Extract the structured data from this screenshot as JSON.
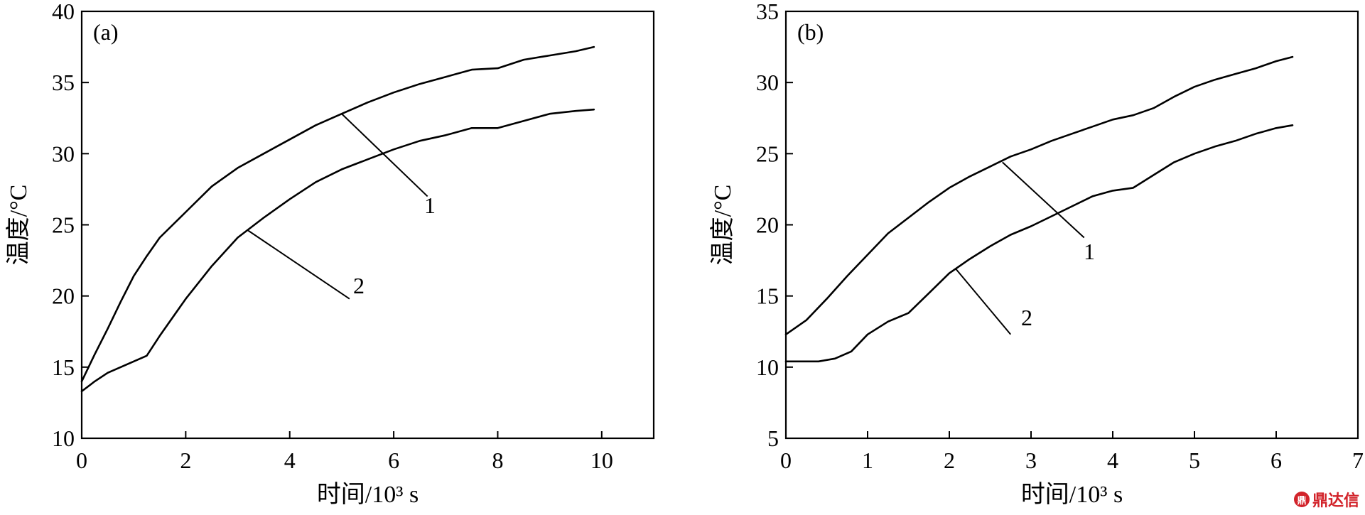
{
  "chart_data": [
    {
      "type": "line",
      "panel_label": "(a)",
      "xlabel": "时间/10³ s",
      "ylabel": "温度/°C",
      "xlim": [
        0,
        11
      ],
      "ylim": [
        10,
        40
      ],
      "xticks": [
        0,
        2,
        4,
        6,
        8,
        10
      ],
      "yticks": [
        10,
        15,
        20,
        25,
        30,
        35,
        40
      ],
      "grid": false,
      "series": [
        {
          "name": "1",
          "x": [
            0,
            0.25,
            0.5,
            0.75,
            1.0,
            1.25,
            1.5,
            2.0,
            2.5,
            3.0,
            3.5,
            4.0,
            4.5,
            5.0,
            5.5,
            6.0,
            6.5,
            7.0,
            7.5,
            8.0,
            8.5,
            9.0,
            9.5,
            9.85
          ],
          "y": [
            14.0,
            15.9,
            17.7,
            19.6,
            21.4,
            22.8,
            24.1,
            25.9,
            27.7,
            29.0,
            30.0,
            31.0,
            32.0,
            32.8,
            33.6,
            34.3,
            34.9,
            35.4,
            35.9,
            36.0,
            36.6,
            36.9,
            37.2,
            37.5
          ]
        },
        {
          "name": "2",
          "x": [
            0,
            0.25,
            0.5,
            0.75,
            1.0,
            1.25,
            1.5,
            2.0,
            2.5,
            3.0,
            3.5,
            4.0,
            4.5,
            5.0,
            5.5,
            6.0,
            6.5,
            7.0,
            7.5,
            8.0,
            8.5,
            9.0,
            9.5,
            9.85
          ],
          "y": [
            13.3,
            14.0,
            14.6,
            15.0,
            15.4,
            15.8,
            17.2,
            19.8,
            22.1,
            24.1,
            25.5,
            26.8,
            28.0,
            28.9,
            29.6,
            30.3,
            30.9,
            31.3,
            31.8,
            31.8,
            32.3,
            32.8,
            33.0,
            33.1
          ]
        }
      ]
    },
    {
      "type": "line",
      "panel_label": "(b)",
      "xlabel": "时间/10³ s",
      "ylabel": "温度/°C",
      "xlim": [
        0,
        7
      ],
      "ylim": [
        5,
        35
      ],
      "xticks": [
        0,
        1,
        2,
        3,
        4,
        5,
        6,
        7
      ],
      "yticks": [
        5,
        10,
        15,
        20,
        25,
        30,
        35
      ],
      "grid": false,
      "series": [
        {
          "name": "1",
          "x": [
            0,
            0.25,
            0.5,
            0.75,
            1.0,
            1.25,
            1.5,
            1.75,
            2.0,
            2.25,
            2.5,
            2.75,
            3.0,
            3.25,
            3.5,
            3.75,
            4.0,
            4.25,
            4.5,
            4.75,
            5.0,
            5.25,
            5.5,
            5.75,
            6.0,
            6.2
          ],
          "y": [
            12.3,
            13.3,
            14.8,
            16.4,
            17.9,
            19.4,
            20.5,
            21.6,
            22.6,
            23.4,
            24.1,
            24.8,
            25.3,
            25.9,
            26.4,
            26.9,
            27.4,
            27.7,
            28.2,
            29.0,
            29.7,
            30.2,
            30.6,
            31.0,
            31.5,
            31.8
          ]
        },
        {
          "name": "2",
          "x": [
            0,
            0.2,
            0.4,
            0.6,
            0.8,
            1.0,
            1.25,
            1.5,
            1.75,
            2.0,
            2.25,
            2.5,
            2.75,
            3.0,
            3.25,
            3.5,
            3.75,
            4.0,
            4.25,
            4.5,
            4.75,
            5.0,
            5.25,
            5.5,
            5.75,
            6.0,
            6.2
          ],
          "y": [
            10.4,
            10.4,
            10.4,
            10.6,
            11.1,
            12.3,
            13.2,
            13.8,
            15.2,
            16.6,
            17.6,
            18.5,
            19.3,
            19.9,
            20.6,
            21.3,
            22.0,
            22.4,
            22.6,
            23.5,
            24.4,
            25.0,
            25.5,
            25.9,
            26.4,
            26.8,
            27.0
          ]
        }
      ]
    }
  ],
  "watermark": {
    "icon": "dingdaxin-logo-icon",
    "text": "鼎达信",
    "color": "#d2232a"
  }
}
